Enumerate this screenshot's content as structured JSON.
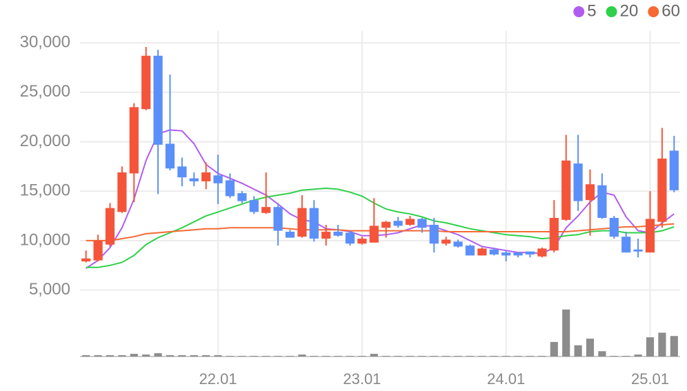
{
  "chart_data": {
    "type": "candlestick",
    "categories": [
      null,
      null,
      null,
      null,
      null,
      null,
      null,
      null,
      null,
      null,
      null,
      "22.01",
      null,
      null,
      null,
      null,
      null,
      null,
      null,
      null,
      null,
      null,
      null,
      "23.01",
      null,
      null,
      null,
      null,
      null,
      null,
      null,
      null,
      null,
      null,
      null,
      "24.01",
      null,
      null,
      null,
      null,
      null,
      null,
      null,
      null,
      null,
      null,
      null,
      "25.01",
      null,
      null
    ],
    "open": [
      7900,
      8000,
      9600,
      12900,
      16800,
      23300,
      28700,
      19800,
      17500,
      16300,
      16000,
      16600,
      16100,
      14800,
      14100,
      12800,
      13400,
      10900,
      10400,
      13300,
      10200,
      10900,
      10800,
      9700,
      9800,
      11300,
      12000,
      11600,
      12200,
      11600,
      9700,
      9900,
      9500,
      8500,
      9100,
      8800,
      8800,
      8900,
      8400,
      9000,
      12100,
      17800,
      14100,
      15600,
      12300,
      10400,
      9100,
      8800,
      11900,
      19100
    ],
    "high": [
      9000,
      10600,
      13800,
      17500,
      23900,
      29600,
      29300,
      26800,
      18400,
      16900,
      17900,
      18700,
      16800,
      15000,
      14500,
      16900,
      13800,
      11100,
      14600,
      14100,
      11600,
      11600,
      11000,
      10400,
      14300,
      12000,
      12400,
      12500,
      12300,
      12300,
      10400,
      10100,
      9600,
      9300,
      9300,
      9000,
      8800,
      8900,
      9300,
      14100,
      20700,
      20700,
      17200,
      16800,
      12500,
      10900,
      10200,
      15000,
      21400,
      20600
    ],
    "low": [
      7800,
      7900,
      9400,
      12800,
      13900,
      23200,
      14700,
      17100,
      15500,
      15500,
      15200,
      13700,
      14300,
      13800,
      12700,
      12700,
      9500,
      10300,
      10300,
      9900,
      9500,
      10400,
      9500,
      9600,
      9800,
      10300,
      11300,
      11500,
      10800,
      8800,
      9500,
      9300,
      8500,
      8500,
      8500,
      7900,
      8300,
      8300,
      8300,
      8800,
      12000,
      13000,
      10500,
      12200,
      10200,
      8800,
      8300,
      8800,
      11300,
      14900
    ],
    "close": [
      8200,
      10000,
      13300,
      16900,
      23500,
      28700,
      19700,
      17300,
      16400,
      16000,
      16900,
      15800,
      14500,
      14000,
      12900,
      13400,
      11000,
      10300,
      13300,
      10200,
      10900,
      10500,
      9700,
      10200,
      11500,
      11900,
      11500,
      12200,
      11300,
      9700,
      10100,
      9400,
      8500,
      9200,
      8600,
      8500,
      8500,
      8600,
      9200,
      12300,
      18100,
      14000,
      15700,
      12300,
      10400,
      8800,
      8900,
      12200,
      18300,
      15100
    ],
    "up_color": "#f4553a",
    "down_color": "#5b8ff9",
    "volume": [
      2,
      2,
      2,
      2,
      4,
      3,
      5,
      2,
      2,
      2,
      2,
      2,
      1,
      1,
      1,
      1,
      1,
      1,
      3,
      1,
      1,
      1,
      1,
      1,
      4,
      1,
      1,
      1,
      1,
      1,
      1,
      1,
      1,
      1,
      1,
      1,
      1,
      1,
      1,
      22,
      71,
      17,
      27,
      8,
      1,
      1,
      3,
      29,
      36,
      31
    ],
    "volume_color": "#8c8c8c",
    "volume_lim": [
      0,
      75
    ],
    "series": [
      {
        "name": "5",
        "color": "#b05cf0",
        "values": [
          7200,
          8000,
          9300,
          11300,
          14200,
          18100,
          20800,
          21200,
          21100,
          19800,
          17700,
          16800,
          16300,
          15800,
          15200,
          14600,
          13700,
          12700,
          12100,
          11900,
          11200,
          11100,
          10900,
          10500,
          10500,
          10600,
          10800,
          11200,
          11600,
          11400,
          11000,
          10600,
          10000,
          9400,
          9200,
          9000,
          8800,
          8800,
          8700,
          9300,
          11300,
          12500,
          13900,
          14900,
          14600,
          12400,
          11000,
          10800,
          11800,
          12700
        ]
      },
      {
        "name": "20",
        "color": "#2fd04a",
        "values": [
          7300,
          7300,
          7500,
          7800,
          8500,
          9600,
          10300,
          10800,
          11300,
          11900,
          12500,
          12900,
          13300,
          13700,
          14100,
          14400,
          14600,
          14800,
          15100,
          15200,
          15300,
          15200,
          14900,
          14500,
          13800,
          13200,
          12900,
          12700,
          12400,
          12000,
          11800,
          11500,
          11200,
          11000,
          10800,
          10600,
          10500,
          10400,
          10200,
          10300,
          10500,
          10600,
          10900,
          11000,
          11000,
          10800,
          10800,
          10800,
          11000,
          11400
        ]
      },
      {
        "name": "60",
        "color": "#f46a32",
        "values": [
          10000,
          10000,
          10000,
          10200,
          10400,
          10700,
          10800,
          10900,
          11000,
          11100,
          11200,
          11200,
          11300,
          11300,
          11300,
          11300,
          11300,
          11200,
          11100,
          11100,
          11100,
          11100,
          11000,
          11000,
          11000,
          11000,
          11000,
          11000,
          11000,
          11000,
          10900,
          10900,
          10900,
          10900,
          10900,
          10900,
          10900,
          10900,
          10900,
          10900,
          10900,
          11000,
          11100,
          11200,
          11300,
          11400,
          11400,
          11500,
          11600,
          11700
        ]
      }
    ],
    "ylim": [
      3300,
      31200
    ],
    "yticks": [
      {
        "value": 5000,
        "label": "5,000"
      },
      {
        "value": 10000,
        "label": "10,000"
      },
      {
        "value": 15000,
        "label": "15,000"
      },
      {
        "value": 20000,
        "label": "20,000"
      },
      {
        "value": 25000,
        "label": "25,000"
      },
      {
        "value": 30000,
        "label": "30,000"
      }
    ],
    "grid": true
  }
}
